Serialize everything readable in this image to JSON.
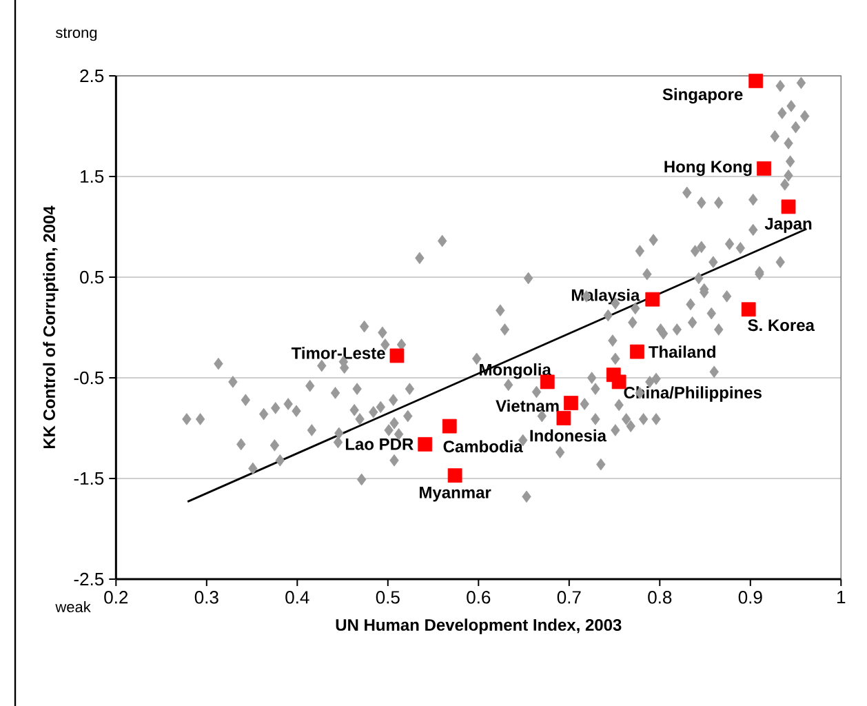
{
  "chart_data": {
    "type": "scatter",
    "xlabel": "UN Human Development Index, 2003",
    "ylabel": "KK Control of Corruption, 2004",
    "xlim": [
      0.2,
      1
    ],
    "ylim": [
      -2.5,
      2.5
    ],
    "xticks": [
      0.2,
      0.3,
      0.4,
      0.5,
      0.6,
      0.7,
      0.8,
      0.9,
      1
    ],
    "yticks": [
      -2.5,
      -1.5,
      -0.5,
      0.5,
      1.5,
      2.5
    ],
    "grid": "y",
    "series": [
      {
        "marker": "diamond",
        "color": "#999999",
        "x": [
          0.278,
          0.293,
          0.313,
          0.329,
          0.343,
          0.363,
          0.376,
          0.338,
          0.375,
          0.351,
          0.381,
          0.39,
          0.399,
          0.414,
          0.416,
          0.427,
          0.442,
          0.445,
          0.452,
          0.451,
          0.466,
          0.463,
          0.474,
          0.471,
          0.494,
          0.497,
          0.515,
          0.524,
          0.506,
          0.492,
          0.484,
          0.522,
          0.507,
          0.512,
          0.501,
          0.507,
          0.469,
          0.446,
          0.535,
          0.56,
          0.655,
          0.624,
          0.629,
          0.598,
          0.633,
          0.649,
          0.653,
          0.69,
          0.67,
          0.664,
          0.717,
          0.729,
          0.735,
          0.729,
          0.719,
          0.725,
          0.751,
          0.763,
          0.768,
          0.755,
          0.782,
          0.796,
          0.789,
          0.796,
          0.778,
          0.751,
          0.748,
          0.77,
          0.773,
          0.751,
          0.743,
          0.801,
          0.804,
          0.819,
          0.834,
          0.836,
          0.849,
          0.865,
          0.857,
          0.874,
          0.86,
          0.91,
          0.786,
          0.933,
          0.956,
          0.945,
          0.935,
          0.96,
          0.95,
          0.927,
          0.942,
          0.944,
          0.942,
          0.938,
          0.903,
          0.865,
          0.846,
          0.83,
          0.903,
          0.933,
          0.91,
          0.877,
          0.889,
          0.793,
          0.778,
          0.839,
          0.846,
          0.859,
          0.843,
          0.849
        ],
        "values": [
          -0.91,
          -0.91,
          -0.36,
          -0.54,
          -0.72,
          -0.86,
          -0.8,
          -1.16,
          -1.17,
          -1.4,
          -1.32,
          -0.76,
          -0.83,
          -0.58,
          -1.02,
          -0.38,
          -0.65,
          -1.14,
          -0.4,
          -0.34,
          -0.61,
          -0.82,
          0.01,
          -1.51,
          -0.05,
          -0.17,
          -0.17,
          -0.61,
          -0.72,
          -0.79,
          -0.84,
          -0.88,
          -0.95,
          -1.06,
          -1.02,
          -1.32,
          -0.91,
          -1.05,
          0.69,
          0.86,
          0.49,
          0.17,
          -0.02,
          -0.31,
          -0.57,
          -1.12,
          -1.68,
          -1.24,
          -0.88,
          -0.64,
          -0.76,
          -0.91,
          -1.36,
          -0.61,
          0.31,
          -0.5,
          -1.02,
          -0.91,
          -0.98,
          -0.77,
          -0.91,
          -0.91,
          -0.54,
          -0.51,
          -0.65,
          -0.31,
          -0.13,
          0.05,
          0.19,
          0.24,
          0.12,
          -0.02,
          -0.06,
          -0.02,
          0.23,
          0.05,
          0.35,
          -0.02,
          0.14,
          0.31,
          -0.44,
          0.53,
          0.53,
          2.4,
          2.43,
          2.2,
          2.13,
          2.1,
          1.99,
          1.9,
          1.83,
          1.65,
          1.51,
          1.42,
          1.27,
          1.24,
          1.24,
          1.34,
          0.97,
          0.65,
          0.55,
          0.83,
          0.79,
          0.87,
          0.76,
          0.76,
          0.8,
          0.65,
          0.49,
          0.38
        ]
      },
      {
        "marker": "square",
        "color": "#ff0000",
        "x": [
          0.906,
          0.915,
          0.942,
          0.792,
          0.898,
          0.775,
          0.676,
          0.749,
          0.755,
          0.702,
          0.694,
          0.51,
          0.541,
          0.568,
          0.574
        ],
        "values": [
          2.45,
          1.58,
          1.2,
          0.28,
          0.18,
          -0.24,
          -0.54,
          -0.47,
          -0.54,
          -0.75,
          -0.9,
          -0.28,
          -1.16,
          -0.98,
          -1.47
        ]
      },
      {
        "type": "line",
        "marker": "none",
        "line_style": "solid",
        "color": "#000000",
        "x": [
          0.279,
          0.962
        ],
        "values": [
          -1.73,
          0.98
        ]
      }
    ],
    "annotations": [
      "strong",
      "weak",
      {
        "text": "Singapore",
        "x": 0.906,
        "y": 2.45
      },
      {
        "text": "Hong Kong",
        "x": 0.915,
        "y": 1.58
      },
      {
        "text": "Japan",
        "x": 0.942,
        "y": 1.2
      },
      {
        "text": "Malaysia",
        "x": 0.792,
        "y": 0.28
      },
      {
        "text": "S. Korea",
        "x": 0.898,
        "y": 0.18
      },
      {
        "text": "Thailand",
        "x": 0.775,
        "y": -0.24
      },
      {
        "text": "Mongolia",
        "x": 0.676,
        "y": -0.54
      },
      {
        "text": "China/Philippines",
        "x": 0.755,
        "y": -0.54
      },
      {
        "text": "Vietnam",
        "x": 0.702,
        "y": -0.75
      },
      {
        "text": "Indonesia",
        "x": 0.694,
        "y": -0.9
      },
      {
        "text": "Timor-Leste",
        "x": 0.51,
        "y": -0.28
      },
      {
        "text": "Lao PDR",
        "x": 0.541,
        "y": -1.16
      },
      {
        "text": "Cambodia",
        "x": 0.568,
        "y": -0.98
      },
      {
        "text": "Myanmar",
        "x": 0.574,
        "y": -1.47
      }
    ]
  }
}
